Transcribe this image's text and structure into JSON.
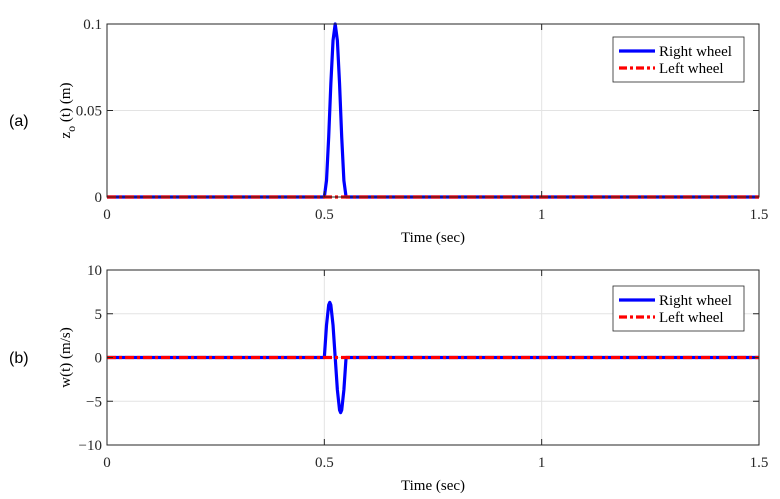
{
  "chart_data": [
    {
      "type": "line",
      "panel_label": "(a)",
      "title": "",
      "xlabel": "Time (sec)",
      "ylabel": "z_o (t) (m)",
      "xlim": [
        0,
        1.5
      ],
      "ylim": [
        0,
        0.1
      ],
      "xticks": [
        "0",
        "0.5",
        "1",
        "1.5"
      ],
      "yticks": [
        "0",
        "0.05",
        "0.1"
      ],
      "grid": true,
      "legend_position": "upper right",
      "series": [
        {
          "name": "Right wheel",
          "color": "#0000ff",
          "style": "solid",
          "x": [
            0,
            0.5,
            0.505,
            0.51,
            0.515,
            0.52,
            0.525,
            0.53,
            0.535,
            0.54,
            0.545,
            0.55,
            1.5
          ],
          "values": [
            0,
            0,
            0.0095,
            0.0345,
            0.0655,
            0.0905,
            0.1,
            0.0905,
            0.0655,
            0.0345,
            0.0095,
            0,
            0
          ]
        },
        {
          "name": "Left wheel",
          "color": "#ff0000",
          "style": "dash-dot",
          "x": [
            0,
            1.5
          ],
          "values": [
            0,
            0
          ]
        }
      ]
    },
    {
      "type": "line",
      "panel_label": "(b)",
      "title": "",
      "xlabel": "Time (sec)",
      "ylabel": "w(t) (m/s)",
      "xlim": [
        0,
        1.5
      ],
      "ylim": [
        -10,
        10
      ],
      "xticks": [
        "0",
        "0.5",
        "1",
        "1.5"
      ],
      "yticks": [
        "-10",
        "-5",
        "0",
        "5",
        "10"
      ],
      "grid": true,
      "legend_position": "upper right",
      "series": [
        {
          "name": "Right wheel",
          "color": "#0000ff",
          "style": "solid",
          "x": [
            0,
            0.5,
            0.505,
            0.51,
            0.5125,
            0.515,
            0.52,
            0.525,
            0.53,
            0.535,
            0.5375,
            0.54,
            0.545,
            0.55,
            1.5
          ],
          "values": [
            0,
            0,
            3.7,
            6.0,
            6.3,
            6.0,
            3.7,
            0,
            -3.7,
            -6.0,
            -6.3,
            -6.0,
            -3.7,
            0,
            0
          ]
        },
        {
          "name": "Left wheel",
          "color": "#ff0000",
          "style": "dash-dot",
          "x": [
            0,
            1.5
          ],
          "values": [
            0,
            0
          ]
        }
      ]
    }
  ]
}
